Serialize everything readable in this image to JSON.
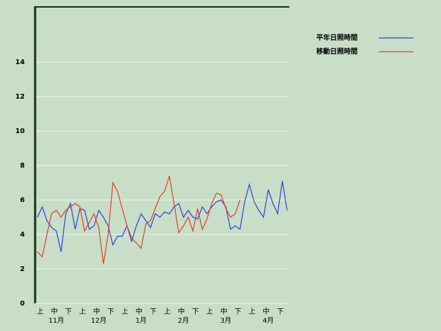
{
  "chart_data": {
    "type": "line",
    "categories": [
      null,
      "上",
      null,
      null,
      "中",
      null,
      null,
      "下",
      null,
      null,
      "上",
      null,
      null,
      "中",
      null,
      null,
      "下",
      null,
      null,
      "上",
      null,
      null,
      "中",
      null,
      null,
      "下",
      null,
      null,
      "上",
      null,
      null,
      "中",
      null,
      null,
      "下",
      null,
      null,
      "上",
      null,
      null,
      "中",
      null,
      null,
      "下",
      null,
      null,
      "上",
      null,
      null,
      "中",
      null,
      null,
      "下",
      null
    ],
    "months": [
      "11月",
      "12月",
      "1月",
      "2月",
      "3月",
      "4月"
    ],
    "series": [
      {
        "name": "平年日照時間",
        "color": "#2a3ee0",
        "values": [
          5.0,
          5.6,
          4.8,
          4.4,
          4.2,
          3.0,
          5.2,
          5.8,
          4.3,
          5.5,
          5.4,
          4.3,
          4.5,
          5.4,
          5.0,
          4.5,
          3.4,
          3.9,
          3.9,
          4.5,
          3.6,
          4.5,
          5.2,
          4.8,
          4.4,
          5.2,
          5.0,
          5.3,
          5.2,
          5.6,
          5.8,
          5.0,
          5.4,
          5.0,
          4.9,
          5.6,
          5.2,
          5.6,
          5.9,
          6.0,
          5.6,
          4.3,
          4.5,
          4.3,
          5.9,
          6.9,
          5.9,
          5.4,
          5.0,
          6.6,
          5.8,
          5.2,
          7.1,
          5.4
        ]
      },
      {
        "name": "移動日照時間",
        "color": "#e03a2a",
        "values": [
          3.0,
          2.7,
          4.0,
          5.2,
          5.4,
          5.0,
          5.4,
          5.6,
          5.8,
          5.6,
          4.2,
          4.7,
          5.2,
          4.4,
          2.3,
          4.0,
          7.0,
          6.5,
          5.5,
          4.5,
          3.8,
          3.5,
          3.2,
          4.6,
          4.8,
          5.5,
          6.2,
          6.5,
          7.4,
          5.8,
          4.1,
          4.5,
          5.0,
          4.2,
          5.5,
          4.3,
          4.9,
          5.8,
          6.4,
          6.3,
          5.5,
          5.0,
          5.2,
          6.0,
          null,
          null,
          null,
          null,
          null,
          null,
          null,
          null,
          null,
          null
        ]
      }
    ],
    "ylim": [
      0,
      17.2
    ],
    "yticks": [
      0,
      2,
      4,
      6,
      8,
      10,
      12,
      14
    ],
    "grid": true
  }
}
